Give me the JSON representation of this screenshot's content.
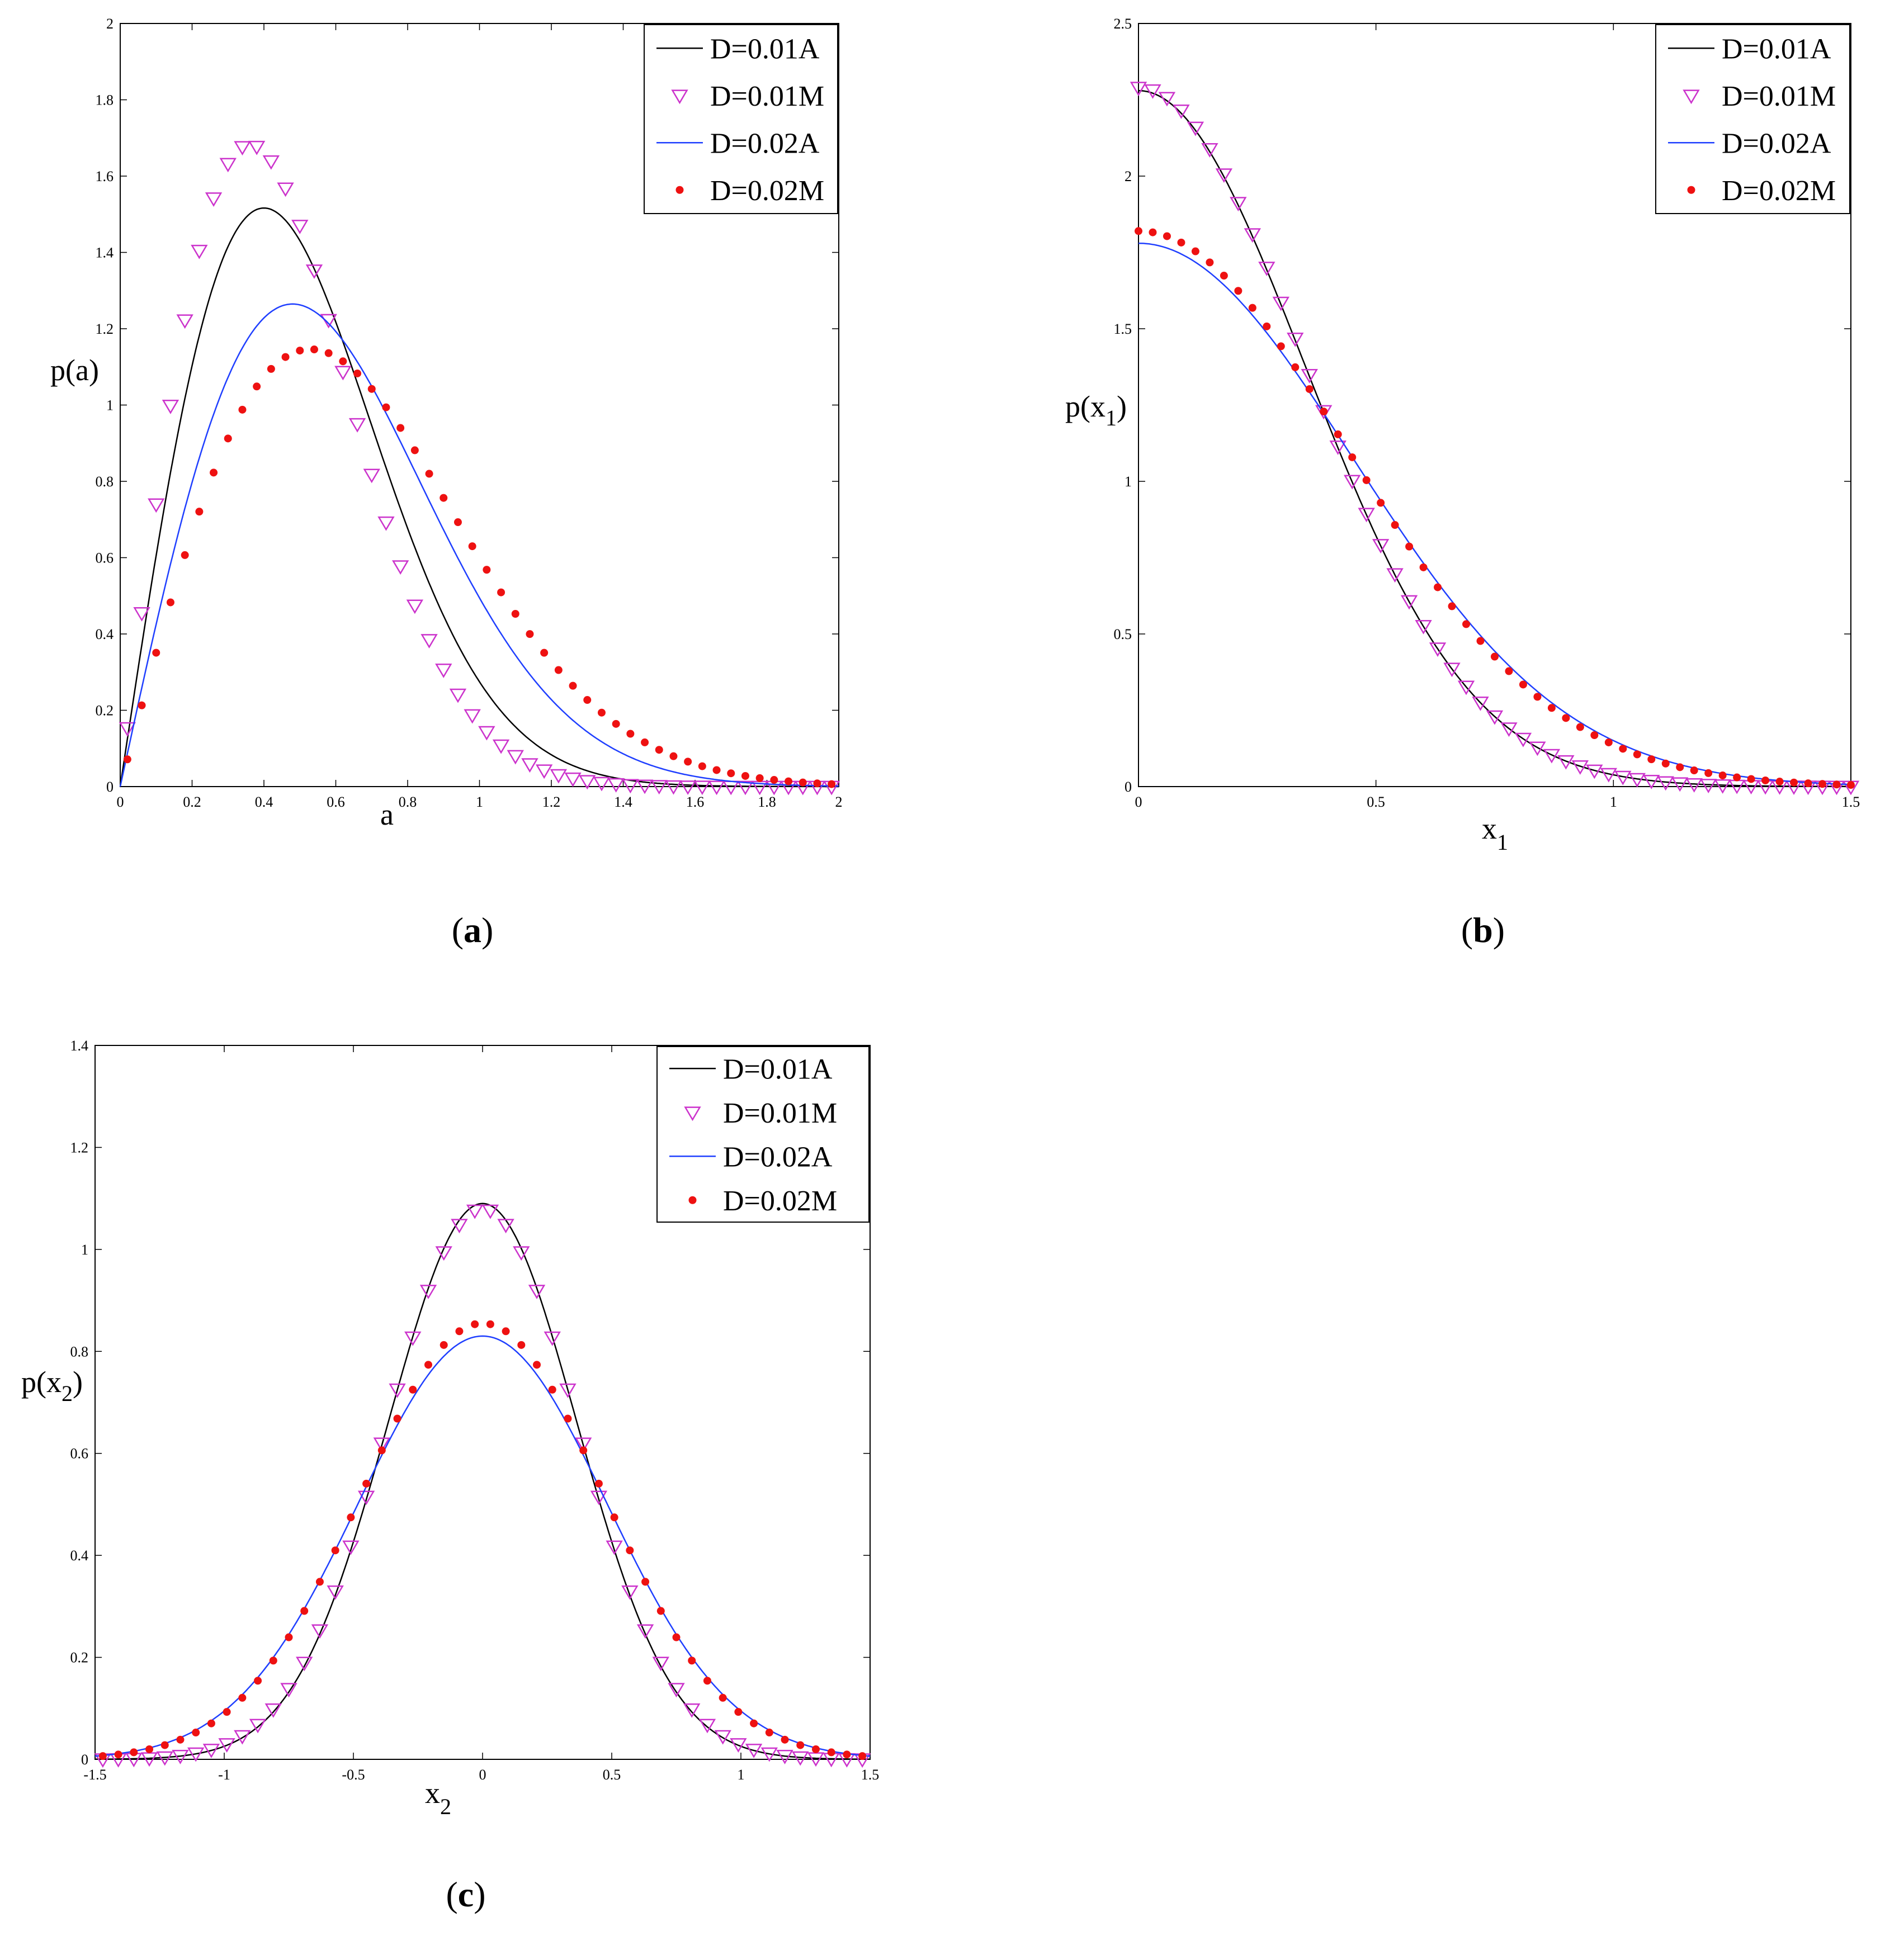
{
  "colors": {
    "d001a": "#000000",
    "d001m": "#cc33cc",
    "d002a": "#1f3fff",
    "d002m": "#ee1111"
  },
  "chart_data": [
    {
      "id": "a",
      "type": "line",
      "panel_label": {
        "open": "(",
        "letter": "a",
        "close": ")"
      },
      "xlabel": "a",
      "ylabel": "p(a)",
      "xlim": [
        0,
        2
      ],
      "ylim": [
        0,
        2
      ],
      "xticks": [
        "0",
        "0.2",
        "0.4",
        "0.6",
        "0.8",
        "1",
        "1.2",
        "1.4",
        "1.6",
        "1.8",
        "2"
      ],
      "yticks": [
        "0",
        "0.2",
        "0.4",
        "0.6",
        "0.8",
        "1",
        "1.2",
        "1.4",
        "1.6",
        "1.8",
        "2"
      ],
      "legend_position": "top-right",
      "series": [
        {
          "name": "D=0.01A",
          "style": "line",
          "color_key": "d001a",
          "model": "rayleigh",
          "params": {
            "s2": 0.16,
            "pow": 1,
            "shift": 0,
            "scale": 1
          }
        },
        {
          "name": "D=0.01M",
          "style": "triangle",
          "color_key": "d001m",
          "model": "rayleigh",
          "params": {
            "s2": 0.13,
            "pow": 1,
            "shift": 0,
            "scale": 1.0
          },
          "x_start": 0.02,
          "x_step": 0.04,
          "x_end": 2.0
        },
        {
          "name": "D=0.02A",
          "style": "line",
          "color_key": "d002a",
          "model": "rayleigh",
          "params": {
            "s2": 0.23,
            "pow": 1,
            "shift": 0,
            "scale": 1
          }
        },
        {
          "name": "D=0.02M",
          "style": "dot",
          "color_key": "d002m",
          "model": "rayleigh",
          "params": {
            "s2": 0.28,
            "pow": 1,
            "shift": 0,
            "scale": 1.0
          },
          "x_start": 0.02,
          "x_step": 0.04,
          "x_end": 2.0
        }
      ]
    },
    {
      "id": "b",
      "type": "line",
      "panel_label": {
        "open": "(",
        "letter": "b",
        "close": ")"
      },
      "xlabel": "x",
      "xlabel_sub": "1",
      "ylabel": "p(x",
      "ylabel_sub": "1",
      "ylabel_close": ")",
      "xlim": [
        0,
        1.5
      ],
      "ylim": [
        0,
        2.5
      ],
      "xticks": [
        "0",
        "0.5",
        "1",
        "1.5"
      ],
      "yticks": [
        "0",
        "0.5",
        "1",
        "1.5",
        "2",
        "2.5"
      ],
      "legend_position": "top-right",
      "series": [
        {
          "name": "D=0.01A",
          "style": "line",
          "color_key": "d001a",
          "model": "halfgauss",
          "params": {
            "peak": 2.28,
            "sigma": 0.35
          }
        },
        {
          "name": "D=0.01M",
          "style": "triangle",
          "color_key": "d001m",
          "model": "halfgauss",
          "params": {
            "peak": 2.29,
            "sigma": 0.35
          },
          "x_start": 0.0,
          "x_step": 0.03,
          "x_end": 1.5
        },
        {
          "name": "D=0.02A",
          "style": "line",
          "color_key": "d002a",
          "model": "halfgauss",
          "params": {
            "peak": 1.78,
            "sigma": 0.45
          }
        },
        {
          "name": "D=0.02M",
          "style": "dot",
          "color_key": "d002m",
          "model": "halfgauss",
          "params": {
            "peak": 1.82,
            "sigma": 0.44
          },
          "x_start": 0.0,
          "x_step": 0.03,
          "x_end": 1.5
        }
      ]
    },
    {
      "id": "c",
      "type": "line",
      "panel_label": {
        "open": "(",
        "letter": "c",
        "close": ")"
      },
      "xlabel": "x",
      "xlabel_sub": "2",
      "ylabel": "p(x",
      "ylabel_sub": "2",
      "ylabel_close": ")",
      "xlim": [
        -1.5,
        1.5
      ],
      "ylim": [
        0,
        1.4
      ],
      "xticks": [
        "-1.5",
        "-1",
        "-0.5",
        "0",
        "0.5",
        "1",
        "1.5"
      ],
      "yticks": [
        "0",
        "0.2",
        "0.4",
        "0.6",
        "0.8",
        "1",
        "1.2",
        "1.4"
      ],
      "legend_position": "top-right",
      "series": [
        {
          "name": "D=0.01A",
          "style": "line",
          "color_key": "d001a",
          "model": "gauss",
          "params": {
            "peak": 1.09,
            "sigma": 0.365
          }
        },
        {
          "name": "D=0.01M",
          "style": "triangle",
          "color_key": "d001m",
          "model": "gauss",
          "params": {
            "peak": 1.08,
            "sigma": 0.37
          },
          "x_start": -1.47,
          "x_step": 0.06,
          "x_end": 1.5
        },
        {
          "name": "D=0.02A",
          "style": "line",
          "color_key": "d002a",
          "model": "gauss",
          "params": {
            "peak": 0.83,
            "sigma": 0.48
          }
        },
        {
          "name": "D=0.02M",
          "style": "dot",
          "color_key": "d002m",
          "model": "gauss",
          "params": {
            "peak": 0.855,
            "sigma": 0.47
          },
          "x_start": -1.47,
          "x_step": 0.06,
          "x_end": 1.5
        }
      ]
    }
  ]
}
